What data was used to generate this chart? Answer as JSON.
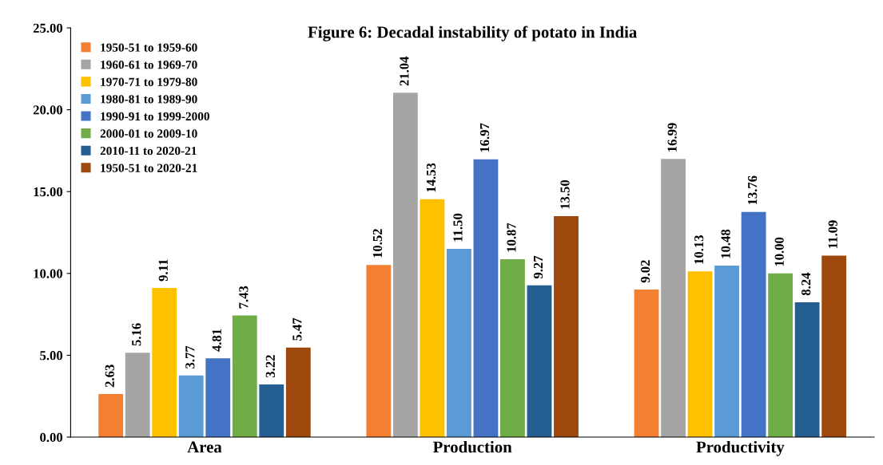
{
  "chart_data": {
    "type": "bar",
    "title": "Figure 6: Decadal instability of potato in India",
    "categories": [
      "Area",
      "Production",
      "Productivity"
    ],
    "series": [
      {
        "name": "1950-51 to 1959-60",
        "color": "#f47f31",
        "values": [
          2.63,
          10.52,
          9.02
        ],
        "value_labels": [
          "2.63",
          "10.52",
          "9.02"
        ]
      },
      {
        "name": "1960-61 to 1969-70",
        "color": "#a5a5a5",
        "values": [
          5.16,
          21.04,
          16.99
        ],
        "value_labels": [
          "5.16",
          "21.04",
          "16.99"
        ]
      },
      {
        "name": "1970-71 to 1979-80",
        "color": "#ffc000",
        "values": [
          9.11,
          14.53,
          10.13
        ],
        "value_labels": [
          "9.11",
          "14.53",
          "10.13"
        ]
      },
      {
        "name": "1980-81 to 1989-90",
        "color": "#5b9bd5",
        "values": [
          3.77,
          11.5,
          10.48
        ],
        "value_labels": [
          "3.77",
          "11.50",
          "10.48"
        ]
      },
      {
        "name": "1990-91 to 1999-2000",
        "color": "#4472c4",
        "values": [
          4.81,
          16.97,
          13.76
        ],
        "value_labels": [
          "4.81",
          "16.97",
          "13.76"
        ]
      },
      {
        "name": "2000-01 to 2009-10",
        "color": "#70ad47",
        "values": [
          7.43,
          10.87,
          10.0
        ],
        "value_labels": [
          "7.43",
          "10.87",
          "10.00"
        ]
      },
      {
        "name": "2010-11 to 2020-21",
        "color": "#255e91",
        "values": [
          3.22,
          9.27,
          8.24
        ],
        "value_labels": [
          "3.22",
          "9.27",
          "8.24"
        ]
      },
      {
        "name": "1950-51 to 2020-21",
        "color": "#9e480e",
        "values": [
          5.47,
          13.5,
          11.09
        ],
        "value_labels": [
          "5.47",
          "13.50",
          "11.09"
        ]
      }
    ],
    "ylim": [
      0,
      25
    ],
    "yticks": [
      {
        "value": 0,
        "label": "0.00"
      },
      {
        "value": 5,
        "label": "5.00"
      },
      {
        "value": 10,
        "label": "10.00"
      },
      {
        "value": 15,
        "label": "15.00"
      },
      {
        "value": 20,
        "label": "20.00"
      },
      {
        "value": 25,
        "label": "25.00"
      }
    ],
    "grid": false,
    "legend": "top left"
  }
}
